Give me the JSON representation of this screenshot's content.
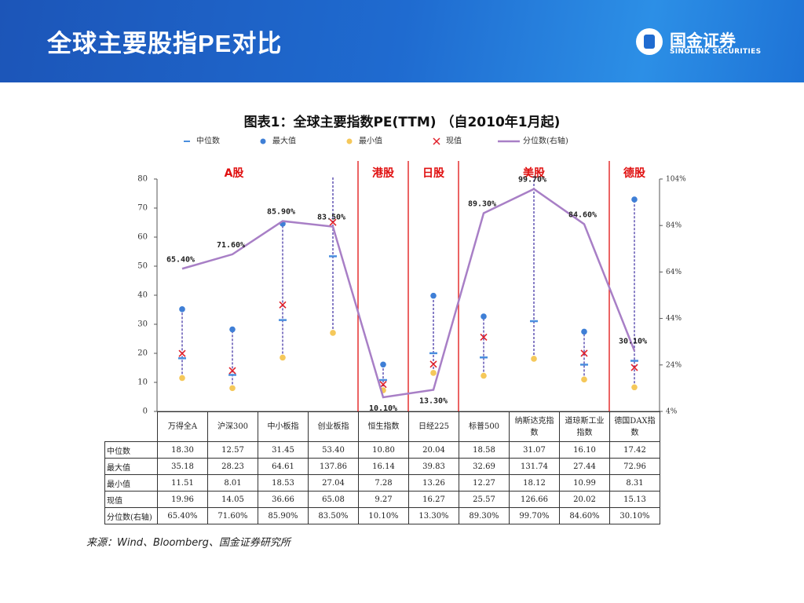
{
  "header": {
    "title": "全球主要股指PE对比",
    "brand": "国金证券",
    "brand_en": "SINOLINK SECURITIES"
  },
  "chart_data": {
    "type": "pe_range",
    "title": "图表1：全球主要指数PE(TTM) （自2010年1月起)",
    "annotations": [
      "A股",
      "港股",
      "日股",
      "美股",
      "德股"
    ],
    "categories": [
      "万得全A",
      "沪深300",
      "中小板指",
      "创业板指",
      "恒生指数",
      "日经225",
      "标普500",
      "纳斯达克指数",
      "道琼斯工业指数",
      "德国DAX指数"
    ],
    "series": [
      {
        "name": "中位数",
        "marker": "dash",
        "color": "#4a8ede",
        "values": [
          18.3,
          12.57,
          31.45,
          53.4,
          10.8,
          20.04,
          18.58,
          31.07,
          16.1,
          17.42
        ],
        "value_labels": [
          "18.30",
          "12.57",
          "31.45",
          "53.40",
          "10.80",
          "20.04",
          "18.58",
          "31.07",
          "16.10",
          "17.42"
        ]
      },
      {
        "name": "最大值",
        "marker": "dot",
        "color": "#3f7fd6",
        "values": [
          35.18,
          28.23,
          64.61,
          137.86,
          16.14,
          39.83,
          32.69,
          131.74,
          27.44,
          72.96
        ],
        "value_labels": [
          "35.18",
          "28.23",
          "64.61",
          "137.86",
          "16.14",
          "39.83",
          "32.69",
          "131.74",
          "27.44",
          "72.96"
        ]
      },
      {
        "name": "最小值",
        "marker": "dot",
        "color": "#f5c85a",
        "values": [
          11.51,
          8.01,
          18.53,
          27.04,
          7.28,
          13.26,
          12.27,
          18.12,
          10.99,
          8.31
        ],
        "value_labels": [
          "11.51",
          "8.01",
          "18.53",
          "27.04",
          "7.28",
          "13.26",
          "12.27",
          "18.12",
          "10.99",
          "8.31"
        ]
      },
      {
        "name": "现值",
        "marker": "x",
        "color": "#e0202a",
        "values": [
          19.96,
          14.05,
          36.66,
          65.08,
          9.27,
          16.27,
          25.57,
          126.66,
          20.02,
          15.13
        ],
        "value_labels": [
          "19.96",
          "14.05",
          "36.66",
          "65.08",
          "9.27",
          "16.27",
          "25.57",
          "126.66",
          "20.02",
          "15.13"
        ]
      },
      {
        "name": "分位数(右轴)",
        "marker": "line",
        "axis": "y2",
        "color": "#a87fc6",
        "values": [
          65.4,
          71.6,
          85.9,
          83.5,
          10.1,
          13.3,
          89.3,
          99.7,
          84.6,
          30.1
        ],
        "value_labels": [
          "65.40%",
          "71.60%",
          "85.90%",
          "83.50%",
          "10.10%",
          "13.30%",
          "89.30%",
          "99.70%",
          "84.60%",
          "30.10%"
        ]
      }
    ],
    "ylim": [
      0,
      80
    ],
    "yticks": [
      0,
      10,
      20,
      30,
      40,
      50,
      60,
      70,
      80
    ],
    "y2lim": [
      4,
      104
    ],
    "y2ticks": [
      {
        "value": 4,
        "label": "4%"
      },
      {
        "value": 24,
        "label": "24%"
      },
      {
        "value": 44,
        "label": "44%"
      },
      {
        "value": 64,
        "label": "64%"
      },
      {
        "value": 84,
        "label": "84%"
      },
      {
        "value": 104,
        "label": "104%"
      }
    ],
    "source": "来源：Wind、Bloomberg、国金证券研究所"
  }
}
